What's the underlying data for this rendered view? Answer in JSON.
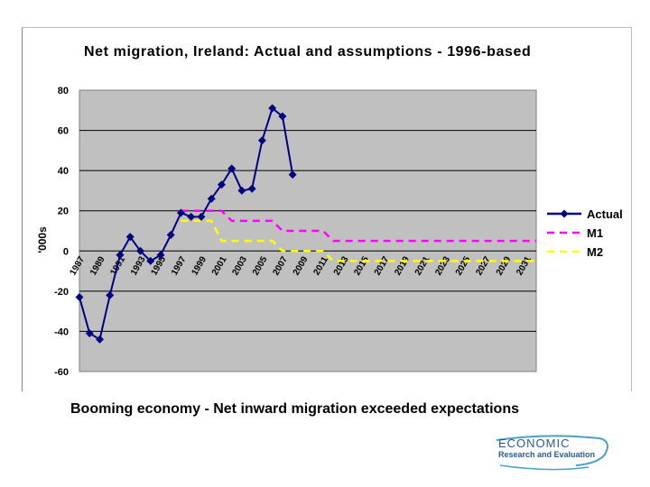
{
  "caption": "Booming economy - Net inward migration exceeded expectations",
  "logo": {
    "line1": "ECONOMIC",
    "line2": "Research and Evaluation"
  },
  "colors": {
    "actual": "#000080",
    "m1": "#ff00ff",
    "m2": "#ffff00",
    "plot_bg": "#c0c0c0"
  },
  "chart_data": {
    "type": "line",
    "title": "Net migration, Ireland: Actual and assumptions - 1996-based",
    "ylabel": "'000s",
    "xlabel": "",
    "ylim": [
      -60,
      80
    ],
    "yticks": [
      80,
      60,
      40,
      20,
      0,
      -20,
      -40,
      -60
    ],
    "xlim": [
      1987,
      2032
    ],
    "xticks": [
      "1987",
      "1989",
      "1991",
      "1993",
      "1995",
      "1997",
      "1999",
      "2001",
      "2003",
      "2005",
      "2007",
      "2009",
      "2011",
      "2013",
      "2015",
      "2017",
      "2019",
      "2021",
      "2023",
      "2025",
      "2027",
      "2029",
      "2031"
    ],
    "grid": "horizontal",
    "legend_position": "right",
    "series": [
      {
        "name": "Actual",
        "x": [
          1987,
          1988,
          1989,
          1990,
          1991,
          1992,
          1993,
          1994,
          1995,
          1996,
          1997,
          1998,
          1999,
          2000,
          2001,
          2002,
          2003,
          2004,
          2005,
          2006,
          2007
        ],
        "y": [
          -23,
          -41,
          -44,
          -22,
          -2,
          7,
          0,
          -5,
          -2,
          8,
          19,
          17,
          17,
          26,
          33,
          41,
          30,
          31,
          55,
          71,
          67
        ]
      },
      {
        "name": "M1",
        "x": [
          1997,
          2000,
          2001,
          2002,
          2006,
          2007,
          2011,
          2012,
          2032
        ],
        "y": [
          20,
          20,
          20,
          15,
          15,
          10,
          10,
          5,
          5
        ]
      },
      {
        "name": "M2",
        "x": [
          1997,
          2000,
          2001,
          2002,
          2006,
          2007,
          2011,
          2012,
          2032
        ],
        "y": [
          15,
          15,
          5,
          5,
          5,
          0,
          0,
          -5,
          -5
        ]
      }
    ],
    "extra_actual_point": {
      "x": 2008,
      "y": 38
    }
  }
}
